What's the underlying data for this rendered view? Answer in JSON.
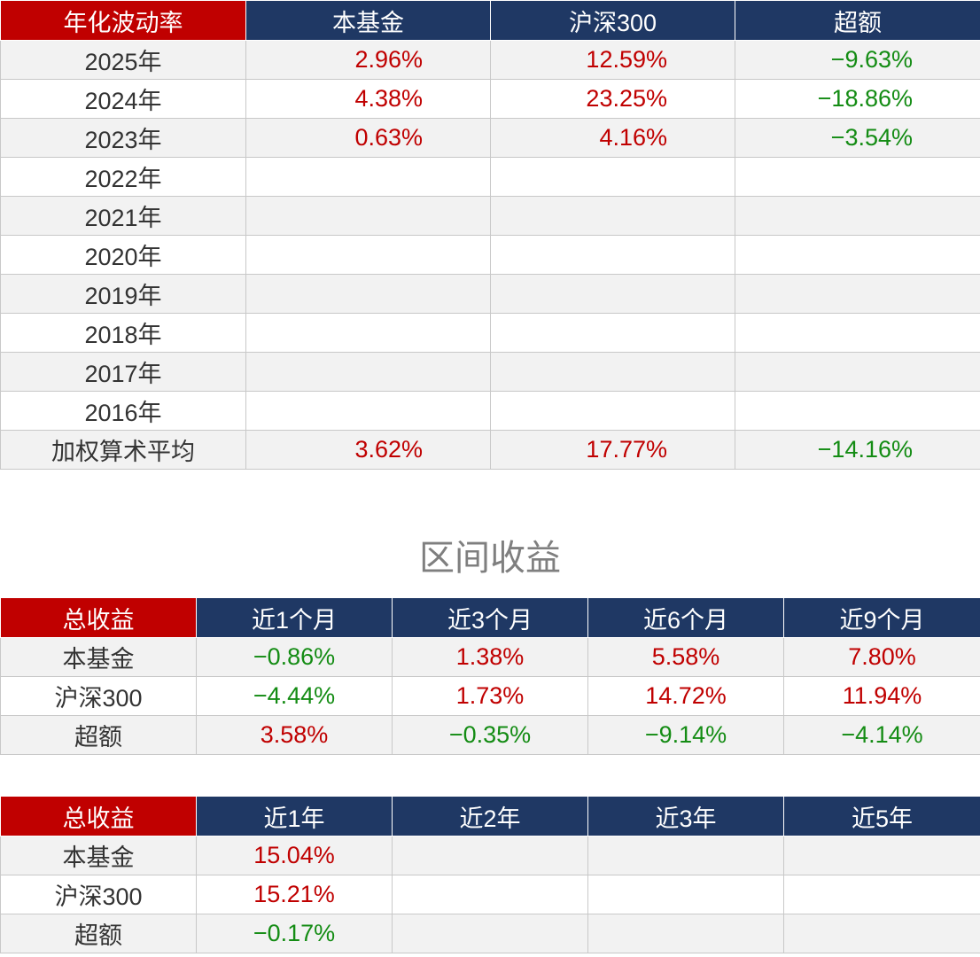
{
  "volatility": {
    "headers": [
      "年化波动率",
      "本基金",
      "沪深300",
      "超额"
    ],
    "rows": [
      {
        "label": "2025年",
        "values": [
          "2.96%",
          "12.59%",
          "−9.63%"
        ]
      },
      {
        "label": "2024年",
        "values": [
          "4.38%",
          "23.25%",
          "−18.86%"
        ]
      },
      {
        "label": "2023年",
        "values": [
          "0.63%",
          "4.16%",
          "−3.54%"
        ]
      },
      {
        "label": "2022年",
        "values": [
          "",
          "",
          ""
        ]
      },
      {
        "label": "2021年",
        "values": [
          "",
          "",
          ""
        ]
      },
      {
        "label": "2020年",
        "values": [
          "",
          "",
          ""
        ]
      },
      {
        "label": "2019年",
        "values": [
          "",
          "",
          ""
        ]
      },
      {
        "label": "2018年",
        "values": [
          "",
          "",
          ""
        ]
      },
      {
        "label": "2017年",
        "values": [
          "",
          "",
          ""
        ]
      },
      {
        "label": "2016年",
        "values": [
          "",
          "",
          ""
        ]
      },
      {
        "label": "加权算术平均",
        "values": [
          "3.62%",
          "17.77%",
          "−14.16%"
        ]
      }
    ]
  },
  "section_title": "区间收益",
  "returns_short": {
    "headers": [
      "总收益",
      "近1个月",
      "近3个月",
      "近6个月",
      "近9个月"
    ],
    "rows": [
      {
        "label": "本基金",
        "values": [
          "−0.86%",
          "1.38%",
          "5.58%",
          "7.80%"
        ]
      },
      {
        "label": "沪深300",
        "values": [
          "−4.44%",
          "1.73%",
          "14.72%",
          "11.94%"
        ]
      },
      {
        "label": "超额",
        "values": [
          "3.58%",
          "−0.35%",
          "−9.14%",
          "−4.14%"
        ]
      }
    ]
  },
  "returns_long": {
    "headers": [
      "总收益",
      "近1年",
      "近2年",
      "近3年",
      "近5年"
    ],
    "rows": [
      {
        "label": "本基金",
        "values": [
          "15.04%",
          "",
          "",
          ""
        ]
      },
      {
        "label": "沪深300",
        "values": [
          "15.21%",
          "",
          "",
          ""
        ]
      },
      {
        "label": "超额",
        "values": [
          "−0.17%",
          "",
          "",
          ""
        ]
      }
    ]
  },
  "colors": {
    "header_red": "#c00000",
    "header_navy": "#1f3864",
    "positive": "#c00000",
    "negative": "#148c14"
  }
}
